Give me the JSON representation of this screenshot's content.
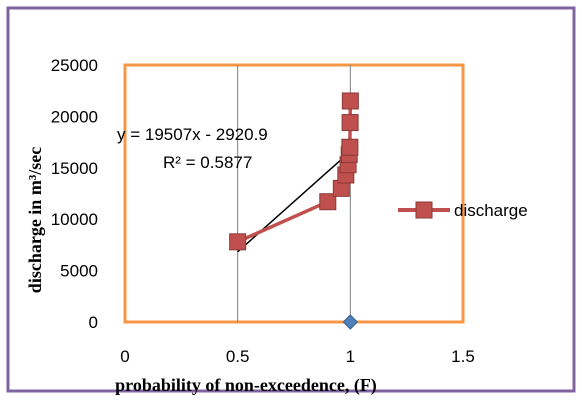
{
  "chart_data": {
    "type": "scatter",
    "title": "",
    "xlabel": "probability of non-exceedence, (F)",
    "ylabel": "discharge in m³/sec",
    "xlim": [
      0,
      1.5
    ],
    "ylim": [
      0,
      25000
    ],
    "x_ticks": [
      "0",
      "0.5",
      "1",
      "1.5"
    ],
    "y_ticks": [
      "0",
      "5000",
      "10000",
      "15000",
      "20000",
      "25000"
    ],
    "grid": "vertical gridlines on",
    "legend_position": "right",
    "series": [
      {
        "name": "discharge",
        "marker": "square",
        "line": true,
        "color": "#C0504D",
        "points": [
          {
            "x": 0.5,
            "y": 7800
          },
          {
            "x": 0.9,
            "y": 11700
          },
          {
            "x": 0.96,
            "y": 13000
          },
          {
            "x": 0.98,
            "y": 14300
          },
          {
            "x": 0.99,
            "y": 15300
          },
          {
            "x": 0.995,
            "y": 16300
          },
          {
            "x": 0.998,
            "y": 17000
          },
          {
            "x": 0.999,
            "y": 19400
          },
          {
            "x": 1.0,
            "y": 21500
          }
        ]
      },
      {
        "name": "",
        "marker": "diamond",
        "line": false,
        "color": "#4F81BD",
        "points": [
          {
            "x": 1.0,
            "y": 0
          }
        ]
      }
    ],
    "trendline": {
      "type": "linear",
      "color": "#000000",
      "x_range": [
        0.5,
        1.0
      ],
      "slope": 19507,
      "intercept": -2920.9
    },
    "annotations": {
      "equation": "y = 19507x - 2920.9",
      "r_squared": "R² = 0.5877"
    },
    "colors": {
      "outer_border": "#8064A2",
      "plot_border": "#F79646",
      "gridline": "#808080"
    }
  }
}
